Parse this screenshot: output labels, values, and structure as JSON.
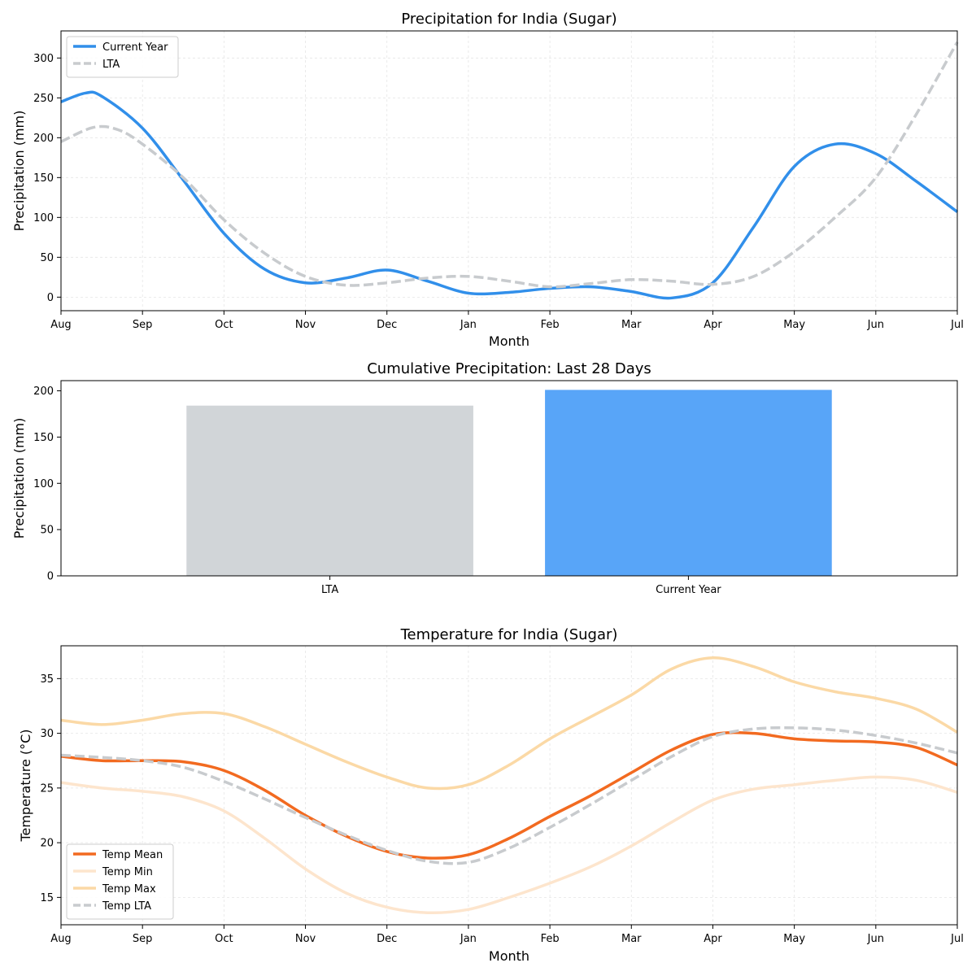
{
  "colors": {
    "current": "#318fea",
    "lta_line": "#c8cbce",
    "lta_bar": "#d1d5d8",
    "current_bar": "#58a5f8",
    "temp_mean": "#f26a20",
    "temp_min": "#fde5cd",
    "temp_max": "#fbd9a6",
    "temp_lta": "#c8cbce"
  },
  "chart_data": [
    {
      "type": "line",
      "title": "Precipitation for India (Sugar)",
      "xlabel": "Month",
      "ylabel": "Precipitation (mm)",
      "x_ticks": [
        "Aug",
        "Sep",
        "Oct",
        "Nov",
        "Dec",
        "Jan",
        "Feb",
        "Mar",
        "Apr",
        "May",
        "Jun",
        "Jul"
      ],
      "yticks": [
        0,
        50,
        100,
        150,
        200,
        250,
        300
      ],
      "ylim": [
        -17,
        334
      ],
      "xlim": [
        0,
        11
      ],
      "grid": true,
      "legend_position": "top-left",
      "series": [
        {
          "name": "Current Year",
          "style": "solid",
          "x": [
            0,
            0.3,
            0.5,
            1,
            1.5,
            2,
            2.5,
            3,
            3.5,
            4,
            4.5,
            5,
            5.5,
            6,
            6.5,
            7,
            7.5,
            8,
            8.5,
            9,
            9.5,
            10,
            10.5,
            11
          ],
          "y": [
            245,
            256,
            252,
            212,
            147,
            80,
            35,
            18,
            24,
            34,
            20,
            5,
            6,
            11,
            13,
            7,
            -1,
            18,
            88,
            164,
            192,
            180,
            145,
            107
          ]
        },
        {
          "name": "LTA",
          "style": "dashed",
          "x": [
            0,
            0.4,
            0.7,
            1,
            1.5,
            2,
            2.5,
            3,
            3.5,
            4,
            4.5,
            5,
            5.5,
            6,
            6.5,
            7,
            7.5,
            8,
            8.5,
            9,
            9.5,
            10,
            10.5,
            11
          ],
          "y": [
            195,
            213,
            210,
            192,
            150,
            97,
            55,
            26,
            15,
            18,
            24,
            26,
            20,
            13,
            17,
            22,
            20,
            16,
            26,
            57,
            100,
            150,
            230,
            320
          ]
        }
      ]
    },
    {
      "type": "bar",
      "title": "Cumulative Precipitation: Last 28 Days",
      "ylabel": "Precipitation (mm)",
      "categories": [
        "LTA",
        "Current Year"
      ],
      "values": [
        184,
        201
      ],
      "yticks": [
        0,
        50,
        100,
        150,
        200
      ],
      "ylim": [
        0,
        211
      ]
    },
    {
      "type": "line",
      "title": "Temperature for India (Sugar)",
      "xlabel": "Month",
      "ylabel": "Temperature (°C)",
      "x_ticks": [
        "Aug",
        "Sep",
        "Oct",
        "Nov",
        "Dec",
        "Jan",
        "Feb",
        "Mar",
        "Apr",
        "May",
        "Jun",
        "Jul"
      ],
      "yticks": [
        15,
        20,
        25,
        30,
        35
      ],
      "ylim": [
        12.5,
        38
      ],
      "xlim": [
        0,
        11
      ],
      "grid": true,
      "legend_position": "bottom-left",
      "series": [
        {
          "name": "Temp Mean",
          "style": "solid",
          "x": [
            0,
            0.5,
            1,
            1.5,
            2,
            2.5,
            3,
            3.5,
            4,
            4.5,
            5,
            5.5,
            6,
            6.5,
            7,
            7.5,
            8,
            8.5,
            9,
            9.5,
            10,
            10.5,
            11
          ],
          "y": [
            27.9,
            27.5,
            27.5,
            27.4,
            26.6,
            24.8,
            22.5,
            20.6,
            19.2,
            18.6,
            18.9,
            20.4,
            22.4,
            24.3,
            26.4,
            28.5,
            29.9,
            30.0,
            29.5,
            29.3,
            29.2,
            28.7,
            27.1
          ]
        },
        {
          "name": "Temp Min",
          "style": "solid",
          "x": [
            0,
            0.5,
            1,
            1.5,
            2,
            2.5,
            3,
            3.5,
            4,
            4.5,
            5,
            5.5,
            6,
            6.5,
            7,
            7.5,
            8,
            8.5,
            9,
            9.5,
            10,
            10.5,
            11
          ],
          "y": [
            25.5,
            25.0,
            24.7,
            24.2,
            22.9,
            20.4,
            17.6,
            15.4,
            14.1,
            13.6,
            13.9,
            15.0,
            16.3,
            17.8,
            19.7,
            21.9,
            23.9,
            24.9,
            25.3,
            25.7,
            26.0,
            25.7,
            24.6
          ]
        },
        {
          "name": "Temp Max",
          "style": "solid",
          "x": [
            0,
            0.5,
            1,
            1.5,
            2,
            2.5,
            3,
            3.5,
            4,
            4.5,
            5,
            5.5,
            6,
            6.5,
            7,
            7.5,
            8,
            8.5,
            9,
            9.5,
            10,
            10.5,
            11
          ],
          "y": [
            31.2,
            30.8,
            31.2,
            31.8,
            31.8,
            30.6,
            29.0,
            27.4,
            26.0,
            25.0,
            25.3,
            27.1,
            29.5,
            31.5,
            33.5,
            35.9,
            36.9,
            36.1,
            34.7,
            33.8,
            33.2,
            32.2,
            30.1
          ]
        },
        {
          "name": "Temp LTA",
          "style": "dashed",
          "x": [
            0,
            0.5,
            1,
            1.5,
            2,
            2.5,
            3,
            3.5,
            4,
            4.5,
            5,
            5.5,
            6,
            6.5,
            7,
            7.5,
            8,
            8.5,
            9,
            9.5,
            10,
            10.5,
            11
          ],
          "y": [
            28.0,
            27.8,
            27.5,
            26.9,
            25.6,
            24.0,
            22.3,
            20.7,
            19.3,
            18.3,
            18.2,
            19.5,
            21.4,
            23.5,
            25.7,
            27.9,
            29.7,
            30.4,
            30.5,
            30.3,
            29.8,
            29.1,
            28.2
          ]
        }
      ]
    }
  ]
}
